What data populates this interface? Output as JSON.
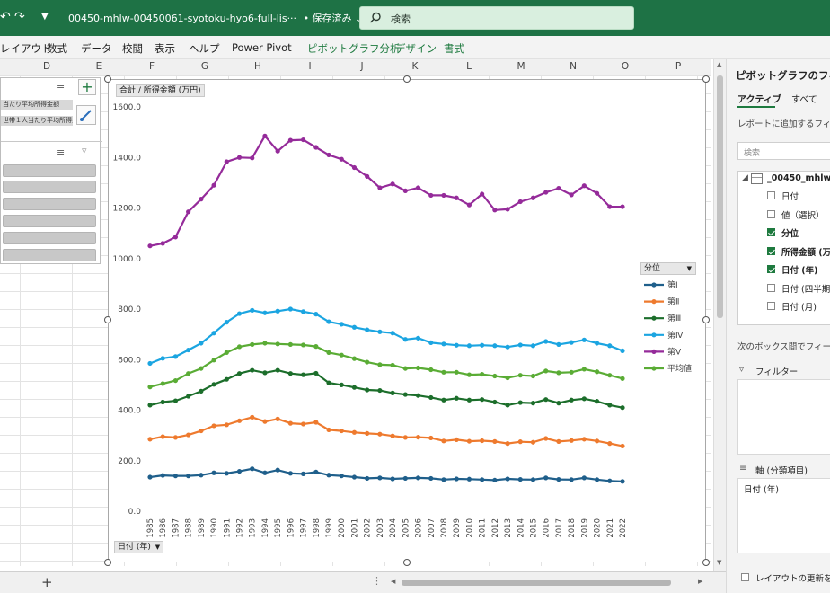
{
  "titlebar": {
    "document_name": "00450-mhlw-00450061-syotoku-hyo6-full-lis···",
    "save_status": "• 保存済み",
    "search_placeholder": "検索"
  },
  "ribbon": {
    "tabs": [
      "レイアウト",
      "数式",
      "データ",
      "校閲",
      "表示",
      "ヘルプ",
      "Power Pivot"
    ],
    "context_tabs": [
      "ピボットグラフ分析",
      "デザイン",
      "書式"
    ]
  },
  "columns": [
    "D",
    "E",
    "F",
    "G",
    "H",
    "I",
    "J",
    "K",
    "L",
    "M",
    "N",
    "O",
    "P"
  ],
  "slicer": {
    "item1": "当たり平均所得金額",
    "item2": "世帯１人当たり平均所得金"
  },
  "chart": {
    "value_field_button": "合計 / 所得金額 (万円)",
    "axis_field_button": "日付 (年)",
    "legend_field_button": "分位"
  },
  "chart_data": {
    "type": "line",
    "title": "",
    "xlabel": "",
    "ylabel": "",
    "ylim": [
      0,
      1600
    ],
    "yticks": [
      "0.0",
      "200.0",
      "400.0",
      "600.0",
      "800.0",
      "1000.0",
      "1200.0",
      "1400.0",
      "1600.0"
    ],
    "grid": false,
    "legend_position": "right",
    "x": [
      "1985",
      "1986",
      "1987",
      "1988",
      "1989",
      "1990",
      "1991",
      "1992",
      "1993",
      "1994",
      "1995",
      "1996",
      "1997",
      "1998",
      "1999",
      "2000",
      "2001",
      "2002",
      "2003",
      "2004",
      "2005",
      "2006",
      "2007",
      "2008",
      "2009",
      "2010",
      "2011",
      "2012",
      "2013",
      "2014",
      "2015",
      "2016",
      "2017",
      "2018",
      "2019",
      "2020",
      "2021",
      "2022"
    ],
    "series": [
      {
        "name": "第Ⅰ",
        "color": "#1f5f8b",
        "values": [
          135,
          142,
          140,
          140,
          143,
          152,
          150,
          158,
          168,
          152,
          163,
          150,
          148,
          155,
          143,
          140,
          135,
          130,
          132,
          128,
          130,
          132,
          130,
          125,
          128,
          127,
          125,
          123,
          128,
          126,
          125,
          132,
          126,
          125,
          132,
          125,
          120,
          118
        ]
      },
      {
        "name": "第Ⅱ",
        "color": "#ee7a2e",
        "values": [
          285,
          295,
          292,
          302,
          318,
          338,
          342,
          358,
          372,
          355,
          365,
          348,
          345,
          352,
          322,
          318,
          312,
          308,
          305,
          298,
          292,
          293,
          290,
          278,
          283,
          277,
          279,
          276,
          268,
          275,
          273,
          288,
          276,
          280,
          285,
          278,
          268,
          258
        ]
      },
      {
        "name": "第Ⅲ",
        "color": "#1c6e2b",
        "values": [
          420,
          432,
          437,
          455,
          475,
          502,
          522,
          545,
          558,
          548,
          558,
          545,
          540,
          546,
          508,
          500,
          490,
          480,
          478,
          468,
          462,
          458,
          450,
          440,
          447,
          440,
          442,
          432,
          420,
          430,
          428,
          442,
          428,
          440,
          445,
          435,
          420,
          410
        ]
      },
      {
        "name": "第Ⅳ",
        "color": "#1ba5e1",
        "values": [
          585,
          605,
          612,
          638,
          665,
          705,
          748,
          782,
          795,
          785,
          792,
          800,
          790,
          780,
          750,
          740,
          728,
          718,
          710,
          705,
          680,
          685,
          667,
          662,
          657,
          655,
          657,
          655,
          650,
          658,
          655,
          672,
          660,
          668,
          678,
          665,
          655,
          635
        ]
      },
      {
        "name": "第Ⅴ",
        "color": "#952b9a",
        "values": [
          1050,
          1060,
          1085,
          1185,
          1235,
          1290,
          1383,
          1400,
          1398,
          1485,
          1425,
          1468,
          1470,
          1440,
          1410,
          1393,
          1360,
          1325,
          1280,
          1295,
          1268,
          1280,
          1250,
          1250,
          1240,
          1212,
          1255,
          1192,
          1195,
          1225,
          1240,
          1262,
          1278,
          1252,
          1288,
          1258,
          1205,
          1205
        ]
      },
      {
        "name": "平均値",
        "color": "#5aac35",
        "values": [
          492,
          505,
          517,
          545,
          565,
          598,
          628,
          651,
          660,
          665,
          662,
          660,
          658,
          652,
          628,
          618,
          604,
          590,
          580,
          578,
          565,
          567,
          560,
          550,
          550,
          540,
          542,
          535,
          528,
          538,
          535,
          555,
          548,
          550,
          562,
          552,
          538,
          525
        ]
      }
    ]
  },
  "pane": {
    "title": "ピボットグラフのフィール",
    "tab_active": "アクティブ",
    "tab_all": "すべて",
    "add_fields_label": "レポートに追加するフィールド",
    "search_placeholder": "検索",
    "table_name": "_00450_mhlw",
    "fields": [
      {
        "label": "日付",
        "checked": false
      },
      {
        "label": "値（選択）",
        "checked": false
      },
      {
        "label": "分位",
        "checked": true
      },
      {
        "label": "所得金額 (万",
        "checked": true
      },
      {
        "label": "日付 (年)",
        "checked": true
      },
      {
        "label": "日付 (四半期",
        "checked": false
      },
      {
        "label": "日付 (月)",
        "checked": false
      }
    ],
    "drag_label": "次のボックス間でフィールドを",
    "filter_label": "フィルター",
    "axis_label": "軸 (分類項目)",
    "axis_item": "日付 (年)",
    "defer_update_label": "レイアウトの更新を保"
  },
  "sheet": {
    "add_sheet": "+"
  }
}
